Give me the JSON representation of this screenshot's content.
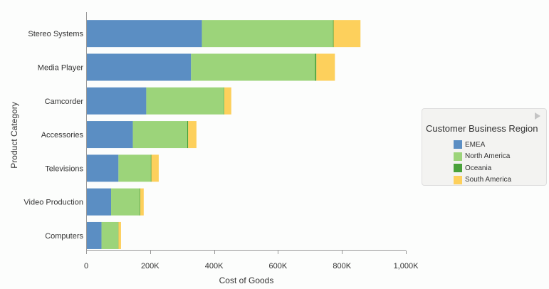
{
  "chart_data": {
    "type": "bar",
    "orientation": "horizontal",
    "stacked": true,
    "categories": [
      "Stereo Systems",
      "Media Player",
      "Camcorder",
      "Accessories",
      "Televisions",
      "Video Production",
      "Computers"
    ],
    "series": [
      {
        "name": "EMEA",
        "color": "#5b8ec3",
        "values": [
          362000,
          328000,
          188000,
          146000,
          101000,
          78000,
          48000
        ]
      },
      {
        "name": "North America",
        "color": "#9cd47a",
        "values": [
          410000,
          388000,
          243000,
          170000,
          101000,
          89000,
          52000
        ]
      },
      {
        "name": "Oceania",
        "color": "#49a13a",
        "values": [
          2000,
          4000,
          1000,
          3000,
          2000,
          2000,
          1000
        ]
      },
      {
        "name": "South America",
        "color": "#fdd05c",
        "values": [
          84000,
          58000,
          22000,
          26000,
          23000,
          11000,
          8000
        ]
      }
    ],
    "xlabel": "Cost of Goods",
    "ylabel": "Product Category",
    "xlim": [
      0,
      1000000
    ],
    "xticks": [
      0,
      200000,
      400000,
      600000,
      800000,
      1000000
    ],
    "xtick_labels": [
      "0",
      "200K",
      "400K",
      "600K",
      "800K",
      "1,000K"
    ],
    "grid": false,
    "legend": {
      "title": "Customer Business Region",
      "position": "right"
    }
  }
}
